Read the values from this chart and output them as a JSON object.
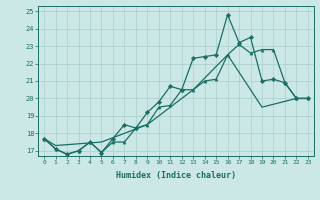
{
  "xlabel": "Humidex (Indice chaleur)",
  "xlim": [
    -0.5,
    23.5
  ],
  "ylim": [
    16.7,
    25.3
  ],
  "yticks": [
    17,
    18,
    19,
    20,
    21,
    22,
    23,
    24,
    25
  ],
  "xticks": [
    0,
    1,
    2,
    3,
    4,
    5,
    6,
    7,
    8,
    9,
    10,
    11,
    12,
    13,
    14,
    15,
    16,
    17,
    18,
    19,
    20,
    21,
    22,
    23
  ],
  "bg_color": "#cce8e6",
  "grid_color": "#aacfcc",
  "line_color": "#1a6e65",
  "line1_x": [
    0,
    1,
    2,
    3,
    4,
    5,
    6,
    7,
    8,
    9,
    10,
    11,
    12,
    13,
    14,
    15,
    16,
    17,
    18,
    19,
    20,
    21,
    22,
    23
  ],
  "line1_y": [
    17.7,
    17.1,
    16.8,
    17.0,
    17.5,
    16.9,
    17.5,
    17.5,
    18.3,
    18.5,
    19.5,
    19.6,
    20.5,
    20.5,
    21.0,
    21.1,
    22.5,
    23.1,
    22.6,
    22.8,
    22.8,
    20.9,
    20.0,
    20.0
  ],
  "line2_x": [
    0,
    1,
    2,
    3,
    4,
    5,
    6,
    7,
    8,
    9,
    10,
    11,
    12,
    13,
    14,
    15,
    16,
    17,
    18,
    19,
    20,
    21,
    22,
    23
  ],
  "line2_y": [
    17.7,
    17.1,
    16.8,
    17.0,
    17.5,
    16.9,
    17.7,
    18.5,
    18.3,
    19.2,
    19.8,
    20.7,
    20.5,
    22.3,
    22.4,
    22.5,
    24.8,
    23.2,
    23.5,
    21.0,
    21.1,
    20.9,
    20.0,
    20.0
  ],
  "line3_x": [
    0,
    1,
    5,
    9,
    13,
    16,
    19,
    22,
    23
  ],
  "line3_y": [
    17.7,
    17.3,
    17.5,
    18.5,
    20.5,
    22.5,
    19.5,
    20.0,
    20.0
  ]
}
